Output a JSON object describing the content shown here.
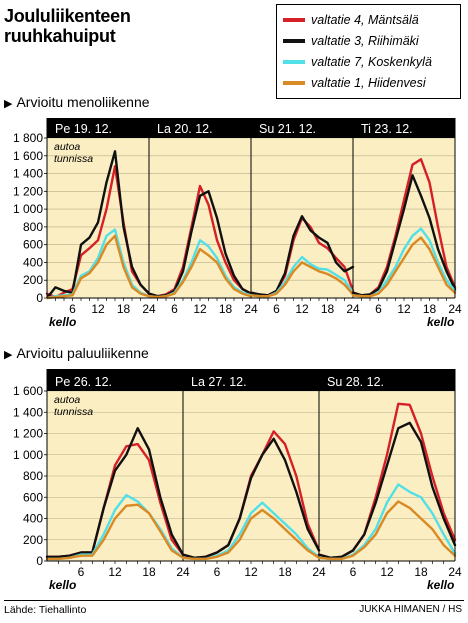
{
  "title_line1": "Joululiikenteen",
  "title_line2": "ruuhkahuiput",
  "source": "Lähde: Tiehallinto",
  "credit": "JUKKA HIMANEN / HS",
  "legend": [
    {
      "label": "valtatie 4, Mäntsälä",
      "color": "#d62027"
    },
    {
      "label": "valtatie 3, Riihimäki",
      "color": "#111111"
    },
    {
      "label": "valtatie 7, Koskenkylä",
      "color": "#52e0e8"
    },
    {
      "label": "valtatie 1, Hiidenvesi",
      "color": "#d98a25"
    }
  ],
  "colors": {
    "plot_bg": "#fbeec2",
    "header_bg": "#000000",
    "header_text": "#ffffff"
  },
  "chart_data": [
    {
      "type": "line",
      "title": "Arvioitu menoliikenne",
      "unit_label": [
        "autoa",
        "tunnissa"
      ],
      "xlabel": "kello",
      "ylim": [
        0,
        1800
      ],
      "yticks": [
        0,
        200,
        400,
        600,
        800,
        1000,
        1200,
        1400,
        1600,
        1800
      ],
      "ytick_labels": [
        "0",
        "200",
        "400",
        "600",
        "800",
        "1 000",
        "1 200",
        "1 400",
        "1 600",
        "1 800"
      ],
      "xticks": [
        6,
        12,
        18,
        24
      ],
      "x_step_hours": 2,
      "days": [
        {
          "label": "Pe 19. 12.",
          "series": [
            {
              "name": "valtatie 4, Mäntsälä",
              "values": [
                50,
                10,
                60,
                100,
                480,
                560,
                650,
                1000,
                1480,
                850,
                300,
                150,
                50
              ]
            },
            {
              "name": "valtatie 3, Riihimäki",
              "values": [
                0,
                120,
                80,
                60,
                600,
                680,
                850,
                1300,
                1650,
                800,
                350,
                150,
                50
              ]
            },
            {
              "name": "valtatie 7, Koskenkylä",
              "values": [
                0,
                20,
                30,
                40,
                250,
                300,
                450,
                700,
                770,
                400,
                150,
                60,
                20
              ]
            },
            {
              "name": "valtatie 1, Hiidenvesi",
              "values": [
                0,
                10,
                20,
                30,
                220,
                280,
                400,
                600,
                700,
                350,
                120,
                50,
                20
              ]
            }
          ]
        },
        {
          "label": "La 20. 12.",
          "series": [
            {
              "name": "valtatie 4, Mäntsälä",
              "values": [
                50,
                20,
                40,
                100,
                350,
                800,
                1260,
                1050,
                650,
                400,
                200,
                100,
                50
              ]
            },
            {
              "name": "valtatie 3, Riihimäki",
              "values": [
                50,
                20,
                30,
                80,
                300,
                750,
                1150,
                1200,
                900,
                500,
                250,
                100,
                50
              ]
            },
            {
              "name": "valtatie 7, Koskenkylä",
              "values": [
                20,
                10,
                20,
                60,
                200,
                400,
                650,
                580,
                450,
                250,
                120,
                60,
                30
              ]
            },
            {
              "name": "valtatie 1, Hiidenvesi",
              "values": [
                20,
                10,
                20,
                50,
                180,
                350,
                550,
                480,
                400,
                220,
                100,
                50,
                20
              ]
            }
          ]
        },
        {
          "label": "Su 21. 12.",
          "series": [
            {
              "name": "valtatie 4, Mäntsälä",
              "values": [
                60,
                40,
                30,
                80,
                250,
                650,
                900,
                800,
                620,
                560,
                450,
                350,
                80
              ]
            },
            {
              "name": "valtatie 3, Riihimäki",
              "values": [
                60,
                40,
                30,
                80,
                280,
                700,
                920,
                760,
                680,
                620,
                400,
                300,
                350
              ]
            },
            {
              "name": "valtatie 7, Koskenkylä",
              "values": [
                30,
                20,
                20,
                60,
                180,
                350,
                460,
                380,
                330,
                320,
                260,
                200,
                60
              ]
            },
            {
              "name": "valtatie 1, Hiidenvesi",
              "values": [
                30,
                20,
                20,
                50,
                150,
                300,
                400,
                350,
                300,
                270,
                220,
                150,
                40
              ]
            }
          ]
        },
        {
          "label": "Ti 23. 12.",
          "series": [
            {
              "name": "valtatie 4, Mäntsälä",
              "values": [
                60,
                30,
                40,
                120,
                350,
                700,
                1100,
                1500,
                1560,
                1300,
                800,
                350,
                120
              ]
            },
            {
              "name": "valtatie 3, Riihimäki",
              "values": [
                60,
                30,
                40,
                100,
                300,
                650,
                1000,
                1380,
                1150,
                900,
                550,
                300,
                100
              ]
            },
            {
              "name": "valtatie 7, Koskenkylä",
              "values": [
                30,
                20,
                20,
                60,
                200,
                350,
                550,
                700,
                780,
                650,
                400,
                200,
                80
              ]
            },
            {
              "name": "valtatie 1, Hiidenvesi",
              "values": [
                30,
                20,
                20,
                50,
                150,
                300,
                450,
                600,
                680,
                550,
                350,
                150,
                60
              ]
            }
          ]
        }
      ]
    },
    {
      "type": "line",
      "title": "Arvioitu paluuliikenne",
      "unit_label": [
        "autoa",
        "tunnissa"
      ],
      "xlabel": "kello",
      "ylim": [
        0,
        1600
      ],
      "yticks": [
        0,
        200,
        400,
        600,
        800,
        1000,
        1200,
        1400,
        1600
      ],
      "ytick_labels": [
        "0",
        "200",
        "400",
        "600",
        "800",
        "1 000",
        "1 200",
        "1 400",
        "1 600"
      ],
      "xticks": [
        6,
        12,
        18,
        24
      ],
      "x_step_hours": 2,
      "days": [
        {
          "label": "Pe 26. 12.",
          "series": [
            {
              "name": "valtatie 4, Mäntsälä",
              "values": [
                40,
                40,
                50,
                80,
                80,
                500,
                900,
                1080,
                1100,
                950,
                550,
                200,
                60
              ]
            },
            {
              "name": "valtatie 3, Riihimäki",
              "values": [
                40,
                40,
                50,
                80,
                80,
                500,
                850,
                1000,
                1250,
                1050,
                600,
                250,
                60
              ]
            },
            {
              "name": "valtatie 7, Koskenkylä",
              "values": [
                20,
                20,
                30,
                60,
                60,
                250,
                480,
                620,
                560,
                450,
                300,
                120,
                30
              ]
            },
            {
              "name": "valtatie 1, Hiidenvesi",
              "values": [
                20,
                20,
                30,
                50,
                50,
                200,
                400,
                520,
                530,
                450,
                280,
                100,
                30
              ]
            }
          ]
        },
        {
          "label": "La 27. 12.",
          "series": [
            {
              "name": "valtatie 4, Mäntsälä",
              "values": [
                60,
                30,
                40,
                80,
                150,
                400,
                800,
                1000,
                1220,
                1100,
                800,
                350,
                100
              ]
            },
            {
              "name": "valtatie 3, Riihimäki",
              "values": [
                60,
                30,
                40,
                80,
                150,
                400,
                780,
                1000,
                1150,
                950,
                650,
                300,
                100
              ]
            },
            {
              "name": "valtatie 7, Koskenkylä",
              "values": [
                30,
                20,
                20,
                50,
                100,
                250,
                450,
                550,
                450,
                350,
                250,
                120,
                40
              ]
            },
            {
              "name": "valtatie 1, Hiidenvesi",
              "values": [
                30,
                20,
                20,
                40,
                80,
                200,
                400,
                480,
                400,
                300,
                200,
                100,
                30
              ]
            }
          ]
        },
        {
          "label": "Su 28. 12.",
          "series": [
            {
              "name": "valtatie 4, Mäntsälä",
              "values": [
                60,
                30,
                40,
                100,
                250,
                600,
                1000,
                1480,
                1470,
                1200,
                800,
                450,
                200
              ]
            },
            {
              "name": "valtatie 3, Riihimäki",
              "values": [
                60,
                30,
                40,
                100,
                250,
                550,
                900,
                1250,
                1300,
                1120,
                700,
                400,
                150
              ]
            },
            {
              "name": "valtatie 7, Koskenkylä",
              "values": [
                30,
                20,
                20,
                60,
                150,
                300,
                550,
                720,
                650,
                600,
                450,
                250,
                70
              ]
            },
            {
              "name": "valtatie 1, Hiidenvesi",
              "values": [
                30,
                20,
                20,
                50,
                130,
                250,
                450,
                560,
                500,
                400,
                300,
                150,
                50
              ]
            }
          ]
        }
      ]
    }
  ]
}
